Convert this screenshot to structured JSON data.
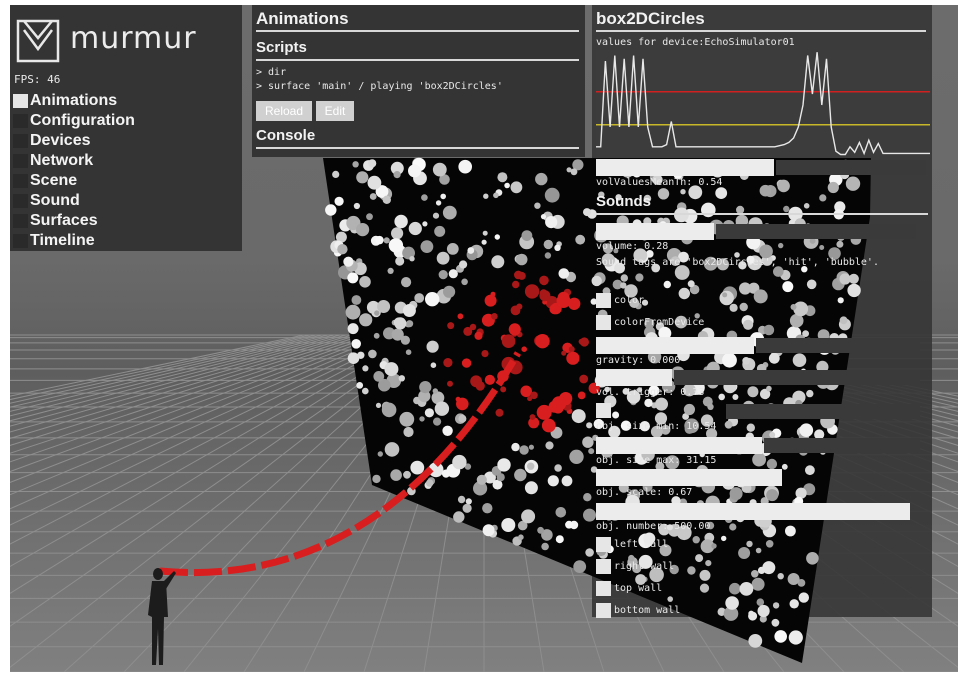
{
  "app": {
    "logo_text": "murmur",
    "fps": "FPS: 46"
  },
  "nav": {
    "items": [
      {
        "label": "Animations",
        "active": true
      },
      {
        "label": "Configuration",
        "active": false
      },
      {
        "label": "Devices",
        "active": false
      },
      {
        "label": "Network",
        "active": false
      },
      {
        "label": "Scene",
        "active": false
      },
      {
        "label": "Sound",
        "active": false
      },
      {
        "label": "Surfaces",
        "active": false
      },
      {
        "label": "Timeline",
        "active": false
      }
    ]
  },
  "animations": {
    "title": "Animations",
    "scripts_title": "Scripts",
    "lines": [
      "> dir",
      "> surface 'main' / playing 'box2DCircles'"
    ],
    "reload_label": "Reload",
    "edit_label": "Edit",
    "console_title": "Console"
  },
  "params": {
    "title": "box2DCircles",
    "graph_label": "values for device:EchoSimulator01",
    "mean_label": "volValuesMeanTh: 0.54",
    "sounds_title": "Sounds",
    "volume_label": "volume: 0.28",
    "sound_tags": "Sound tags are 'box2DCircles', 'hit', 'bubble'.",
    "color_label": "color",
    "color_from_device_label": "colorFromDevice",
    "gravity_label": "gravity: 0.000",
    "vol_trigger_label": "vol. trigger: 0.33",
    "size_min_label": "obj. size min: 10.54",
    "size_max_label": "obj. size max: 31.15",
    "scale_label": "obj. scale: 0.67",
    "number_label": "obj. number: 500.00",
    "left_wall_label": "left wall",
    "right_wall_label": "right wall",
    "top_wall_label": "top wall",
    "bottom_wall_label": "bottom wall"
  },
  "graph": {
    "red_line_level": 0.62,
    "yellow_line_level": 0.32,
    "signal": [
      0.12,
      0.12,
      0.9,
      0.3,
      0.95,
      0.3,
      0.92,
      0.3,
      0.95,
      0.3,
      0.92,
      0.3,
      0.12,
      0.12,
      0.12,
      0.14,
      0.35,
      0.12,
      0.12,
      0.12,
      0.12,
      0.12,
      0.12,
      0.12,
      0.12,
      0.12,
      0.12,
      0.12,
      0.12,
      0.12,
      0.12,
      0.12,
      0.12,
      0.12,
      0.12,
      0.12,
      0.12,
      0.12,
      0.12,
      0.13,
      0.14,
      0.16,
      0.2,
      0.3,
      0.5,
      0.95,
      0.6,
      0.98,
      0.5,
      0.92,
      0.3,
      0.08,
      0.05,
      0.05,
      0.12,
      0.07,
      0.16,
      0.06,
      0.18,
      0.07,
      0.15,
      0.06,
      0.06,
      0.06,
      0.06,
      0.06,
      0.06,
      0.06,
      0.06,
      0.06,
      0.06,
      0.06
    ],
    "colors": {
      "signal": "#e8e8e8",
      "red": "#d02020",
      "yellow": "#c9b72a"
    }
  },
  "colors": {
    "accent_red": "#d81e1e",
    "panel": "#303030"
  }
}
